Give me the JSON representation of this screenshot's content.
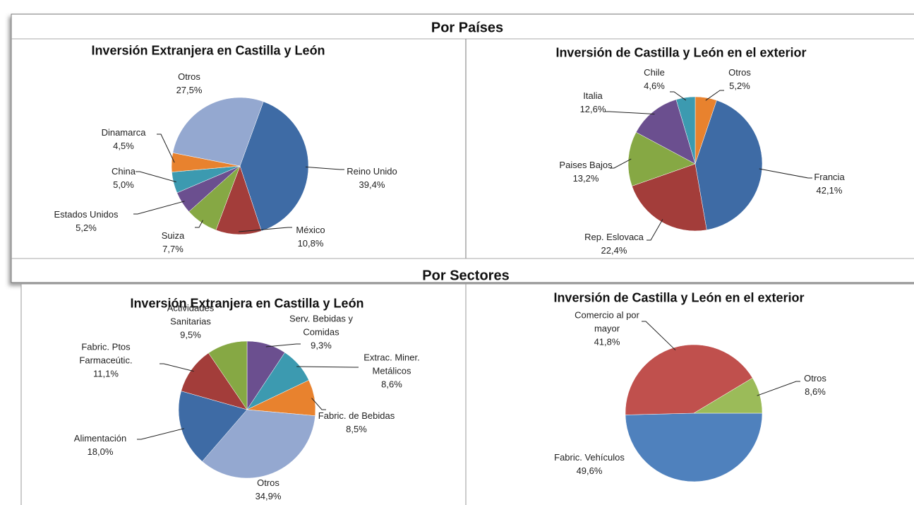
{
  "sections": [
    "Por Países",
    "Por Sectores"
  ],
  "chart_data": [
    {
      "type": "pie",
      "title": "Inversión Extranjera  en Castilla y León",
      "categories": [
        "Reino Unido",
        "México",
        "Suiza",
        "Estados Unidos",
        "China",
        "Dinamarca",
        "Otros"
      ],
      "values": [
        39.4,
        10.8,
        7.7,
        5.2,
        5.0,
        4.5,
        27.5
      ],
      "value_labels": [
        "39,4%",
        "10,8%",
        "7,7%",
        "5,2%",
        "5,0%",
        "4,5%",
        "27,5%"
      ],
      "colors": [
        "#3e6ba5",
        "#a33d3a",
        "#86a844",
        "#6b4f8f",
        "#3c9ab0",
        "#e8822e",
        "#94a8d0"
      ]
    },
    {
      "type": "pie",
      "title": "Inversión de Castilla y León en el exterior",
      "categories": [
        "Otros",
        "Francia",
        "Rep. Eslovaca",
        "Paises Bajos",
        "Italia",
        "Chile"
      ],
      "values": [
        5.2,
        42.1,
        22.4,
        13.2,
        12.6,
        4.6
      ],
      "value_labels": [
        "5,2%",
        "42,1%",
        "22,4%",
        "13,2%",
        "12,6%",
        "4,6%"
      ],
      "colors": [
        "#e8822e",
        "#3e6ba5",
        "#a33d3a",
        "#86a844",
        "#6b4f8f",
        "#3c9ab0"
      ]
    },
    {
      "type": "pie",
      "title": "Inversión Extranjera  en Castilla y León",
      "categories": [
        "Serv. Bebidas y Comidas",
        "Extrac. Miner. Metálicos",
        "Fabric. de Bebidas",
        "Otros",
        "Alimentación",
        "Fabric. Ptos Farmaceútic.",
        "Actividades Sanitarias"
      ],
      "values": [
        9.3,
        8.6,
        8.5,
        34.9,
        18.0,
        11.1,
        9.5
      ],
      "value_labels": [
        "9,3%",
        "8,6%",
        "8,5%",
        "34,9%",
        "18,0%",
        "11,1%",
        "9,5%"
      ],
      "colors": [
        "#6b4f8f",
        "#3c9ab0",
        "#e8822e",
        "#94a8d0",
        "#3e6ba5",
        "#a33d3a",
        "#86a844"
      ]
    },
    {
      "type": "pie",
      "title": "Inversión de Castilla y León en el exterior",
      "categories": [
        "Fabric. Vehículos",
        "Comercio al por mayor",
        "Otros"
      ],
      "values": [
        49.6,
        41.8,
        8.6
      ],
      "value_labels": [
        "49,6%",
        "41,8%",
        "8,6%"
      ],
      "colors": [
        "#4f81bd",
        "#c0504d",
        "#9bbb59"
      ]
    }
  ]
}
